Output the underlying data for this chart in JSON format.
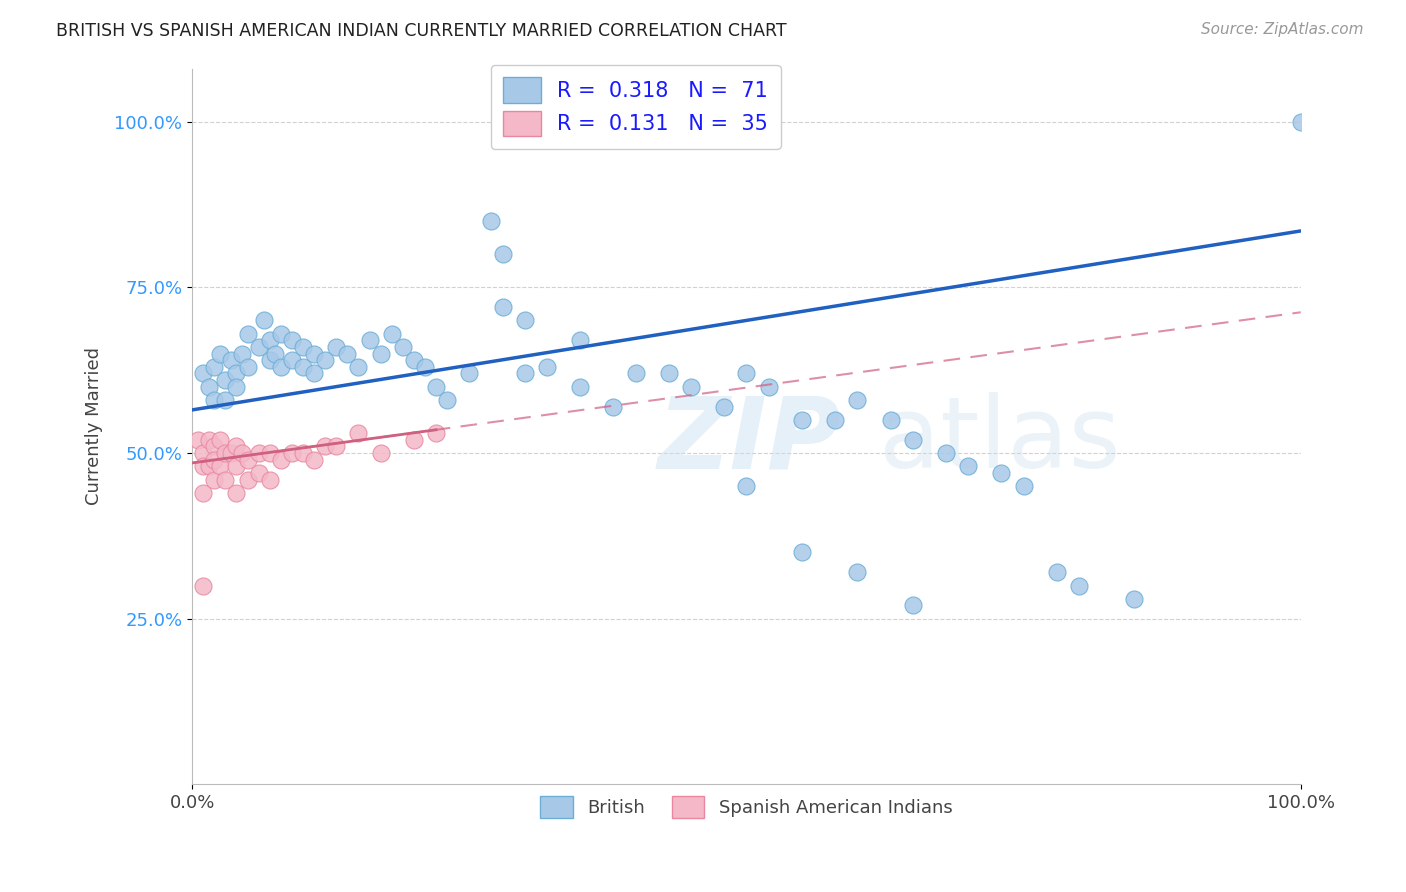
{
  "title": "BRITISH VS SPANISH AMERICAN INDIAN CURRENTLY MARRIED CORRELATION CHART",
  "source": "Source: ZipAtlas.com",
  "ylabel": "Currently Married",
  "watermark": "ZIPatlas",
  "blue_R": 0.318,
  "blue_N": 71,
  "pink_R": 0.131,
  "pink_N": 35,
  "blue_color": "#a8c8e8",
  "blue_edge": "#6baed6",
  "pink_color": "#f4b8c8",
  "pink_edge": "#e888a0",
  "blue_line_color": "#2060c0",
  "pink_line_color": "#d06080",
  "xlim": [
    0,
    1.0
  ],
  "ylim": [
    0,
    1.08
  ],
  "ytick_vals": [
    0.25,
    0.5,
    0.75,
    1.0
  ],
  "ytick_labels": [
    "25.0%",
    "50.0%",
    "75.0%",
    "100.0%"
  ],
  "ytick_color": "#3399ff",
  "grid_color": "#cccccc",
  "background_color": "#ffffff",
  "legend_label_blue": "British",
  "legend_label_pink": "Spanish American Indians",
  "blue_line_x0": 0.0,
  "blue_line_y0": 0.565,
  "blue_line_x1": 1.0,
  "blue_line_y1": 0.835,
  "pink_line_x0": 0.0,
  "pink_line_y0": 0.485,
  "pink_line_x1": 0.22,
  "pink_line_y1": 0.535,
  "blue_x": [
    0.01,
    0.015,
    0.02,
    0.02,
    0.025,
    0.03,
    0.03,
    0.035,
    0.04,
    0.04,
    0.045,
    0.05,
    0.05,
    0.06,
    0.065,
    0.07,
    0.07,
    0.075,
    0.08,
    0.08,
    0.09,
    0.09,
    0.1,
    0.1,
    0.11,
    0.11,
    0.12,
    0.13,
    0.14,
    0.15,
    0.16,
    0.17,
    0.18,
    0.19,
    0.2,
    0.21,
    0.22,
    0.23,
    0.25,
    0.27,
    0.28,
    0.3,
    0.32,
    0.35,
    0.38,
    0.4,
    0.43,
    0.45,
    0.48,
    0.5,
    0.52,
    0.55,
    0.58,
    0.6,
    0.63,
    0.65,
    0.68,
    0.7,
    0.73,
    0.75,
    0.78,
    0.8,
    0.85,
    0.28,
    0.3,
    0.35,
    0.5,
    0.55,
    0.6,
    0.65,
    1.0
  ],
  "blue_y": [
    0.62,
    0.6,
    0.63,
    0.58,
    0.65,
    0.61,
    0.58,
    0.64,
    0.62,
    0.6,
    0.65,
    0.68,
    0.63,
    0.66,
    0.7,
    0.67,
    0.64,
    0.65,
    0.68,
    0.63,
    0.67,
    0.64,
    0.66,
    0.63,
    0.65,
    0.62,
    0.64,
    0.66,
    0.65,
    0.63,
    0.67,
    0.65,
    0.68,
    0.66,
    0.64,
    0.63,
    0.6,
    0.58,
    0.62,
    0.85,
    0.8,
    0.62,
    0.63,
    0.6,
    0.57,
    0.62,
    0.62,
    0.6,
    0.57,
    0.62,
    0.6,
    0.55,
    0.55,
    0.58,
    0.55,
    0.52,
    0.5,
    0.48,
    0.47,
    0.45,
    0.32,
    0.3,
    0.28,
    0.72,
    0.7,
    0.67,
    0.45,
    0.35,
    0.32,
    0.27,
    1.0
  ],
  "pink_x": [
    0.005,
    0.01,
    0.01,
    0.015,
    0.015,
    0.02,
    0.02,
    0.02,
    0.025,
    0.025,
    0.03,
    0.03,
    0.035,
    0.04,
    0.04,
    0.04,
    0.045,
    0.05,
    0.05,
    0.06,
    0.06,
    0.07,
    0.07,
    0.08,
    0.09,
    0.1,
    0.11,
    0.12,
    0.13,
    0.15,
    0.17,
    0.2,
    0.22,
    0.01,
    0.01
  ],
  "pink_y": [
    0.52,
    0.5,
    0.48,
    0.52,
    0.48,
    0.51,
    0.49,
    0.46,
    0.52,
    0.48,
    0.5,
    0.46,
    0.5,
    0.51,
    0.48,
    0.44,
    0.5,
    0.49,
    0.46,
    0.5,
    0.47,
    0.5,
    0.46,
    0.49,
    0.5,
    0.5,
    0.49,
    0.51,
    0.51,
    0.53,
    0.5,
    0.52,
    0.53,
    0.44,
    0.3
  ]
}
